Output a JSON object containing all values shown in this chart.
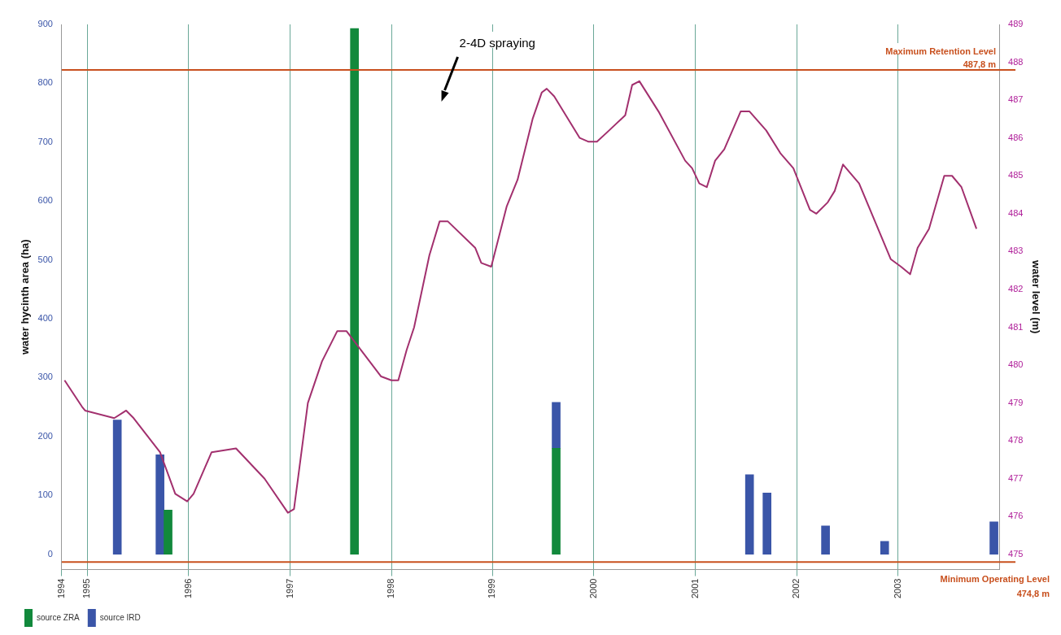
{
  "chart_data": {
    "type": "bar",
    "stacked": true,
    "grid": "x",
    "legend": "bottom left",
    "ylabel": "water hycinth area (ha)",
    "y2label": "water level (m)",
    "xlim": [
      "1994-10",
      "2004-01"
    ],
    "xticks": [
      {
        "value": "1994-10",
        "label": "1994"
      },
      "1995",
      "1996",
      "1997",
      "1998",
      "1999",
      "2000",
      "2001",
      "2002",
      "2003"
    ],
    "ylim": [
      -26,
      900
    ],
    "yticks": [
      0,
      100,
      200,
      300,
      400,
      500,
      600,
      700,
      800,
      900
    ],
    "y2lim": [
      474.6,
      489
    ],
    "y2ticks": [
      475,
      476,
      477,
      478,
      479,
      480,
      481,
      482,
      483,
      484,
      485,
      486,
      487,
      488,
      489
    ],
    "series": [
      {
        "name": "source ZRA",
        "color": "#12893c",
        "values": [
          null,
          null,
          75,
          893,
          180,
          null,
          null,
          null,
          null,
          null
        ]
      },
      {
        "name": "source IRD",
        "color": "#3a55a8",
        "values": [
          228,
          169,
          null,
          null,
          78,
          135,
          104,
          48,
          22,
          55
        ]
      },
      {
        "type": "line",
        "axis": "y2",
        "color": "#a2306e",
        "x": [
          "1994-10-11",
          "1994-12-13",
          "1994-12-24",
          "1995-04-08",
          "1995-05-21",
          "1995-06-17",
          "1995-09-20",
          "1995-11-14",
          "1995-12-27",
          "1996-01-19",
          "1996-03-24",
          "1996-06-20",
          "1996-10-01",
          "1996-12-24",
          "1997-01-15",
          "1997-03-06",
          "1997-04-26",
          "1997-06-20",
          "1997-07-23",
          "1997-09-13",
          "1997-11-25",
          "1998-01-01",
          "1998-01-26",
          "1998-02-25",
          "1998-03-24",
          "1998-05-18",
          "1998-06-24",
          "1998-07-23",
          "1998-10-30",
          "1998-11-21",
          "1998-12-27",
          "1999-02-21",
          "1999-04-01",
          "1999-05-25",
          "1999-06-27",
          "1999-07-15",
          "1999-08-11",
          "1999-11-11",
          "1999-12-13",
          "2000-01-12",
          "2000-02-25",
          "2000-04-23",
          "2000-05-18",
          "2000-06-13",
          "2000-08-21",
          "2000-11-25",
          "2000-12-20",
          "2001-01-15",
          "2001-02-11",
          "2001-03-13",
          "2001-04-15",
          "2001-06-13",
          "2001-07-15",
          "2001-09-13",
          "2001-11-03",
          "2001-12-20",
          "2002-02-18",
          "2002-03-13",
          "2002-04-23",
          "2002-05-18",
          "2002-06-17",
          "2002-08-14",
          "2002-12-06",
          "2003-01-12",
          "2003-02-14",
          "2003-03-13",
          "2003-04-23",
          "2003-06-17",
          "2003-07-15",
          "2003-08-18",
          "2003-10-11"
        ],
        "values": [
          479.6,
          478.9,
          478.8,
          478.6,
          478.8,
          478.6,
          477.7,
          476.6,
          476.4,
          476.6,
          477.7,
          477.8,
          477.0,
          476.1,
          476.2,
          479.0,
          480.1,
          480.9,
          480.9,
          480.4,
          479.7,
          479.6,
          479.6,
          480.4,
          481.0,
          482.9,
          483.8,
          483.8,
          483.1,
          482.7,
          482.6,
          484.2,
          484.9,
          486.5,
          487.2,
          487.3,
          487.1,
          486.0,
          485.9,
          485.9,
          486.2,
          486.6,
          487.4,
          487.5,
          486.7,
          485.4,
          485.2,
          484.8,
          484.7,
          485.4,
          485.7,
          486.7,
          486.7,
          486.2,
          485.6,
          485.2,
          484.1,
          484.0,
          484.3,
          484.6,
          485.3,
          484.8,
          482.8,
          482.6,
          482.4,
          483.1,
          483.6,
          485.0,
          485.0,
          484.7,
          483.6
        ]
      }
    ],
    "ref_lines": [
      {
        "axis": "y2",
        "value": 487.8,
        "label": "Maximum Retention Level\n487,8 m",
        "color": "#c8501e"
      },
      {
        "axis": "y2",
        "value": 474.8,
        "label": "Minimum Operating Level\n474,8 m",
        "color": "#c8501e"
      }
    ],
    "x": [
      "1995-04-19",
      "1995-09-20",
      "1995-10-19",
      "1997-08-21",
      "1999-08-18",
      "2001-07-15",
      "2001-09-16",
      "2002-04-15",
      "2002-11-14",
      "2003-12-13"
    ],
    "annotations": [
      "2-4D spraying"
    ]
  }
}
